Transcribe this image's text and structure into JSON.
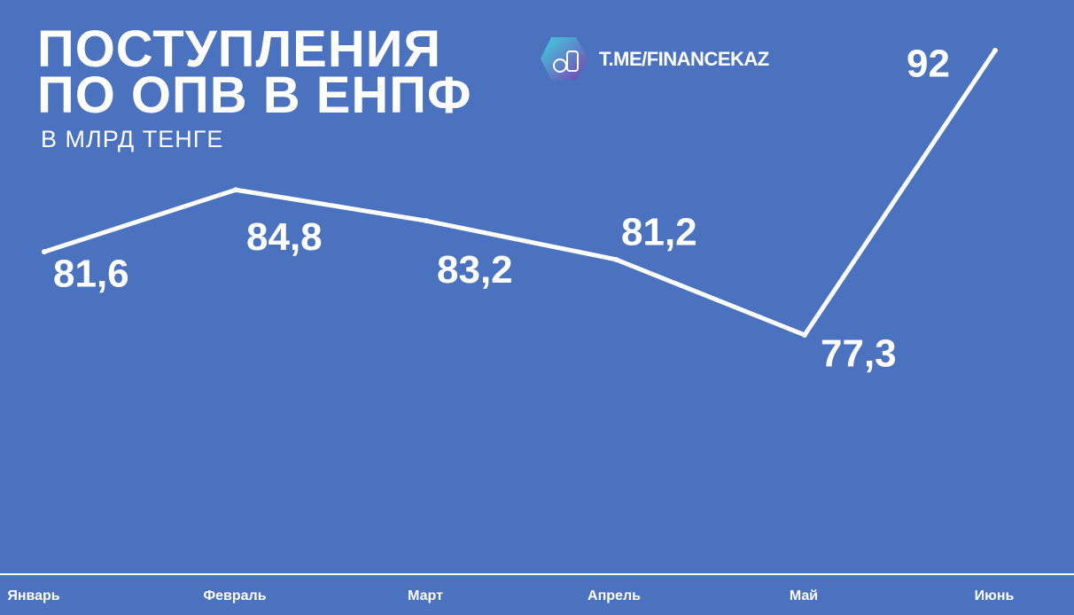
{
  "chart_data": {
    "type": "line",
    "title": "ПОСТУПЛЕНИЯ ПО ОПВ В ЕНПФ",
    "subtitle": "В МЛРД ТЕНГЕ",
    "source": "T.ME/FINANCEKAZ",
    "categories": [
      "Январь",
      "Февраль",
      "Март",
      "Апрель",
      "Май",
      "Июнь"
    ],
    "values": [
      81.6,
      84.8,
      83.2,
      81.2,
      77.3,
      92
    ],
    "value_labels": [
      "81,6",
      "84,8",
      "83,2",
      "81,2",
      "77,3",
      "92"
    ],
    "color": "#ffffff"
  }
}
